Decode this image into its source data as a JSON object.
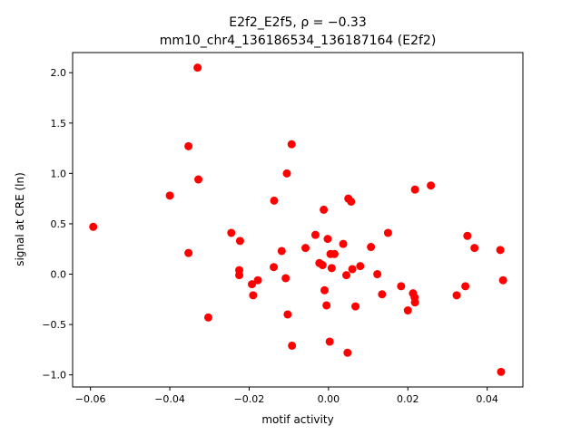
{
  "chart_data": {
    "type": "scatter",
    "title_line1": "E2f2_E2f5, ρ = −0.33",
    "title_line2": "mm10_chr4_136186534_136187164 (E2f2)",
    "xlabel": "motif activity",
    "ylabel": "signal at CRE (ln)",
    "xlim": [
      -0.0645,
      0.049
    ],
    "ylim": [
      -1.12,
      2.2
    ],
    "x_ticks": [
      -0.06,
      -0.04,
      -0.02,
      0.0,
      0.02,
      0.04
    ],
    "x_tick_labels": [
      "−0.06",
      "−0.04",
      "−0.02",
      "0.00",
      "0.02",
      "0.04"
    ],
    "y_ticks": [
      -1.0,
      -0.5,
      0.0,
      0.5,
      1.0,
      1.5,
      2.0
    ],
    "y_tick_labels": [
      "−1.0",
      "−0.5",
      "0.0",
      "0.5",
      "1.0",
      "1.5",
      "2.0"
    ],
    "grid": false,
    "marker_color": "#ff0000",
    "points": [
      {
        "x": -0.0593,
        "y": 0.47
      },
      {
        "x": -0.04,
        "y": 0.78
      },
      {
        "x": -0.0353,
        "y": 1.27
      },
      {
        "x": -0.0353,
        "y": 0.21
      },
      {
        "x": -0.033,
        "y": 2.05
      },
      {
        "x": -0.0328,
        "y": 0.94
      },
      {
        "x": -0.0303,
        "y": -0.43
      },
      {
        "x": -0.0245,
        "y": 0.41
      },
      {
        "x": -0.0223,
        "y": 0.33
      },
      {
        "x": -0.0225,
        "y": 0.04
      },
      {
        "x": -0.0225,
        "y": -0.01
      },
      {
        "x": -0.0193,
        "y": -0.1
      },
      {
        "x": -0.019,
        "y": -0.21
      },
      {
        "x": -0.0178,
        "y": -0.06
      },
      {
        "x": -0.0138,
        "y": 0.07
      },
      {
        "x": -0.0137,
        "y": 0.73
      },
      {
        "x": -0.0118,
        "y": 0.23
      },
      {
        "x": -0.0108,
        "y": -0.04
      },
      {
        "x": -0.0105,
        "y": 1.0
      },
      {
        "x": -0.0103,
        "y": -0.4
      },
      {
        "x": -0.0093,
        "y": 1.29
      },
      {
        "x": -0.0092,
        "y": -0.71
      },
      {
        "x": -0.0058,
        "y": 0.26
      },
      {
        "x": -0.0033,
        "y": 0.39
      },
      {
        "x": -0.0023,
        "y": 0.11
      },
      {
        "x": -0.0015,
        "y": 0.09
      },
      {
        "x": -0.0012,
        "y": 0.64
      },
      {
        "x": -0.001,
        "y": -0.16
      },
      {
        "x": -0.0005,
        "y": -0.31
      },
      {
        "x": -0.0002,
        "y": 0.35
      },
      {
        "x": 0.0003,
        "y": -0.67
      },
      {
        "x": 0.0005,
        "y": 0.2
      },
      {
        "x": 0.0008,
        "y": 0.06
      },
      {
        "x": 0.0015,
        "y": 0.2
      },
      {
        "x": 0.0037,
        "y": 0.3
      },
      {
        "x": 0.0045,
        "y": -0.01
      },
      {
        "x": 0.0048,
        "y": -0.78
      },
      {
        "x": 0.005,
        "y": 0.75
      },
      {
        "x": 0.0057,
        "y": 0.72
      },
      {
        "x": 0.006,
        "y": 0.05
      },
      {
        "x": 0.0068,
        "y": -0.32
      },
      {
        "x": 0.008,
        "y": 0.08
      },
      {
        "x": 0.0107,
        "y": 0.27
      },
      {
        "x": 0.0123,
        "y": 0.0
      },
      {
        "x": 0.0135,
        "y": -0.2
      },
      {
        "x": 0.015,
        "y": 0.41
      },
      {
        "x": 0.0183,
        "y": -0.12
      },
      {
        "x": 0.02,
        "y": -0.36
      },
      {
        "x": 0.0213,
        "y": -0.19
      },
      {
        "x": 0.0217,
        "y": -0.23
      },
      {
        "x": 0.0218,
        "y": -0.28
      },
      {
        "x": 0.0218,
        "y": 0.84
      },
      {
        "x": 0.0258,
        "y": 0.88
      },
      {
        "x": 0.0323,
        "y": -0.21
      },
      {
        "x": 0.0345,
        "y": -0.12
      },
      {
        "x": 0.035,
        "y": 0.38
      },
      {
        "x": 0.0368,
        "y": 0.26
      },
      {
        "x": 0.0433,
        "y": 0.24
      },
      {
        "x": 0.0435,
        "y": -0.97
      },
      {
        "x": 0.044,
        "y": -0.06
      }
    ]
  }
}
